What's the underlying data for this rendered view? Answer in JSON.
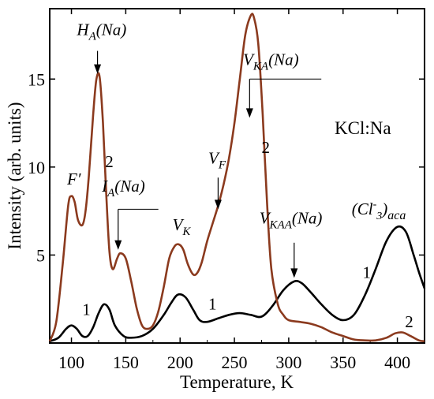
{
  "chart_data": {
    "type": "line",
    "xlabel": "Temperature, K",
    "ylabel": "Intensity (arb. units)",
    "xlim": [
      80,
      425
    ],
    "ylim": [
      0,
      19
    ],
    "xticks": [
      100,
      150,
      200,
      250,
      300,
      350,
      400
    ],
    "yticks": [
      5,
      10,
      15
    ],
    "sample_label": "KCl:Na",
    "series": [
      {
        "name": "1",
        "color": "#000000",
        "x": [
          80,
          88,
          95,
          100,
          105,
          110,
          115,
          120,
          125,
          130,
          135,
          140,
          148,
          155,
          165,
          175,
          185,
          192,
          198,
          205,
          212,
          218,
          225,
          235,
          245,
          255,
          265,
          275,
          285,
          295,
          305,
          312,
          320,
          330,
          340,
          350,
          360,
          370,
          380,
          390,
          400,
          408,
          415,
          420,
          425
        ],
        "y": [
          0.1,
          0.3,
          0.8,
          1.0,
          0.8,
          0.4,
          0.4,
          0.9,
          1.7,
          2.2,
          1.9,
          1.0,
          0.4,
          0.3,
          0.4,
          0.8,
          1.6,
          2.3,
          2.75,
          2.6,
          1.9,
          1.3,
          1.2,
          1.4,
          1.6,
          1.7,
          1.6,
          1.5,
          2.1,
          3.0,
          3.5,
          3.4,
          2.9,
          2.2,
          1.6,
          1.3,
          1.6,
          2.7,
          4.2,
          5.8,
          6.6,
          6.3,
          5.0,
          4.0,
          3.1
        ]
      },
      {
        "name": "2",
        "color": "#8b3a1e",
        "x": [
          80,
          86,
          92,
          97,
          100,
          103,
          106,
          110,
          113,
          116,
          120,
          123,
          126,
          129,
          132,
          135,
          138,
          142,
          145,
          150,
          155,
          160,
          165,
          170,
          175,
          180,
          185,
          190,
          195,
          199,
          203,
          207,
          212,
          216,
          220,
          225,
          230,
          235,
          240,
          245,
          250,
          255,
          260,
          265,
          268,
          272,
          276,
          280,
          284,
          290,
          295,
          300,
          310,
          320,
          330,
          340,
          350,
          360,
          370,
          380,
          390,
          398,
          405,
          412,
          420,
          425
        ],
        "y": [
          0.1,
          1.2,
          4.5,
          7.8,
          8.35,
          8.0,
          7.0,
          6.7,
          7.5,
          9.5,
          13.0,
          15.0,
          15.1,
          12.5,
          8.5,
          5.2,
          4.2,
          4.8,
          5.1,
          4.8,
          3.5,
          2.0,
          1.0,
          0.8,
          1.0,
          1.8,
          3.2,
          4.8,
          5.5,
          5.6,
          5.3,
          4.5,
          3.9,
          4.0,
          4.6,
          5.8,
          6.8,
          7.8,
          9.0,
          10.5,
          12.5,
          15.0,
          17.5,
          18.6,
          18.5,
          17.0,
          13.0,
          8.0,
          4.2,
          2.2,
          1.6,
          1.3,
          1.2,
          1.1,
          0.9,
          0.6,
          0.4,
          0.2,
          0.15,
          0.15,
          0.3,
          0.55,
          0.6,
          0.4,
          0.15,
          0.1
        ]
      }
    ],
    "annotations": [
      {
        "text": "F′",
        "x": 96,
        "y": 9.0
      },
      {
        "text": "H",
        "sub": "A",
        "rest": "(Na)",
        "x": 105,
        "y": 17.5,
        "arrow_x": 124,
        "arrow_from": 16.6,
        "arrow_to": 15.3
      },
      {
        "text": "I",
        "sub": "A",
        "rest": "(Na)",
        "x": 128,
        "y": 8.6,
        "arrow_x": 143,
        "arrow_from": 7.6,
        "arrow_to": 5.3,
        "leader_to_x": 180
      },
      {
        "text": "V",
        "sub": "K",
        "rest": "",
        "x": 193,
        "y": 6.4
      },
      {
        "text": "V",
        "sub": "F",
        "rest": "",
        "x": 226,
        "y": 10.2,
        "arrow_x": 235,
        "arrow_from": 9.4,
        "arrow_to": 7.6
      },
      {
        "text": "V",
        "sub": "KA",
        "rest": "(Na)",
        "x": 258,
        "y": 15.8,
        "arrow_x": 264,
        "arrow_from": 15.0,
        "arrow_to": 12.8,
        "leader_to_x": 330
      },
      {
        "text": "V",
        "sub": "KAA",
        "rest": "(Na)",
        "x": 273,
        "y": 6.8,
        "arrow_x": 305,
        "arrow_from": 5.7,
        "arrow_to": 3.7
      },
      {
        "text": "(Cl",
        "sup": "-",
        "sub": "3",
        "rest": ")",
        "sub2": "aca",
        "x": 358,
        "y": 7.3
      }
    ],
    "curve_labels": [
      {
        "text": "2",
        "x": 131,
        "y": 10.0
      },
      {
        "text": "1",
        "x": 110,
        "y": 1.6
      },
      {
        "text": "1",
        "x": 226,
        "y": 1.9
      },
      {
        "text": "2",
        "x": 275,
        "y": 10.8
      },
      {
        "text": "1",
        "x": 368,
        "y": 3.7
      },
      {
        "text": "2",
        "x": 407,
        "y": 0.9
      }
    ]
  }
}
